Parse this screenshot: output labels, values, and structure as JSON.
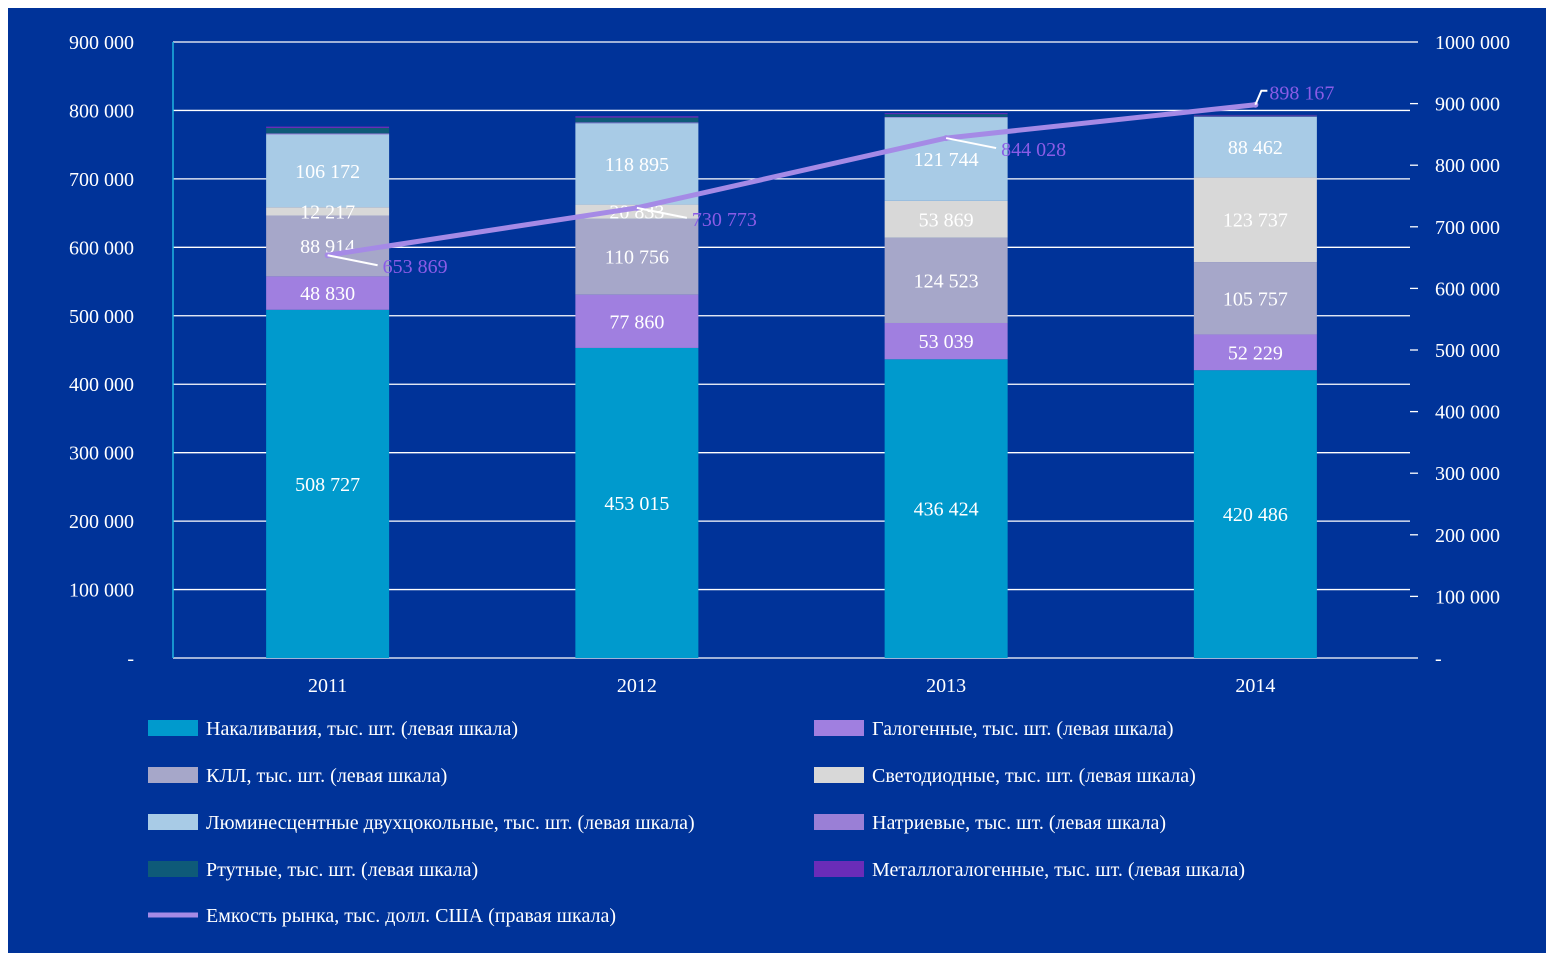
{
  "chart_data": {
    "type": "bar",
    "stacked": true,
    "categories": [
      "2011",
      "2012",
      "2013",
      "2014"
    ],
    "left_axis": {
      "ylim": [
        0,
        900000
      ],
      "ticks": [
        "-",
        "100 000",
        "200 000",
        "300 000",
        "400 000",
        "500 000",
        "600 000",
        "700 000",
        "800 000",
        "900 000"
      ]
    },
    "right_axis": {
      "ylim": [
        0,
        1000000
      ],
      "ticks": [
        "-",
        "100 000",
        "200 000",
        "300 000",
        "400 000",
        "500 000",
        "600 000",
        "700 000",
        "800 000",
        "900 000",
        "1000 000"
      ]
    },
    "grid": true,
    "legend_position": "bottom",
    "series": [
      {
        "name": "Накаливания, тыс. шт. (левая шкала)",
        "color": "#009ACD",
        "values": [
          508727,
          453015,
          436424,
          420486
        ],
        "labels": [
          "508 727",
          "453 015",
          "436 424",
          "420 486"
        ]
      },
      {
        "name": "Галогенные, тыс. шт. (левая шкала)",
        "color": "#A07FE0",
        "values": [
          48830,
          77860,
          53039,
          52229
        ],
        "labels": [
          "48 830",
          "77 860",
          "53 039",
          "52 229"
        ]
      },
      {
        "name": "КЛЛ, тыс. шт. (левая шкала)",
        "color": "#A6A7C9",
        "values": [
          88914,
          110756,
          124523,
          105757
        ],
        "labels": [
          "88 914",
          "110 756",
          "124 523",
          "105 757"
        ]
      },
      {
        "name": "Светодиодные, тыс. шт. (левая шкала)",
        "color": "#D8D8D8",
        "values": [
          12217,
          20833,
          53869,
          123737
        ],
        "labels": [
          "12 217",
          "20 833",
          "53 869",
          "123 737"
        ]
      },
      {
        "name": "Люминесцентные двухцокольные, тыс. шт. (левая шкала)",
        "color": "#A8CBE6",
        "values": [
          106172,
          118895,
          121744,
          88462
        ],
        "labels": [
          "106 172",
          "118 895",
          "121 744",
          "88 462"
        ]
      },
      {
        "name": "Натриевые, тыс. шт. (левая шкала)",
        "color": "#9A7FD6",
        "values": [
          1500,
          1200,
          1000,
          800
        ],
        "labels": [
          "",
          "",
          "",
          ""
        ]
      },
      {
        "name": "Ртутные, тыс. шт. (левая шкала)",
        "color": "#0E5A78",
        "values": [
          8000,
          7000,
          4000,
          1000
        ],
        "labels": [
          "",
          "",
          "",
          ""
        ]
      },
      {
        "name": "Металлогалогенные, тыс. шт. (левая шкала)",
        "color": "#6A2CB8",
        "values": [
          2000,
          2000,
          1500,
          1000
        ],
        "labels": [
          "",
          "",
          "",
          ""
        ]
      }
    ],
    "line": {
      "name": "Емкость рынка, тыс. долл. США (правая шкала)",
      "color": "#A58AE6",
      "axis": "right",
      "values": [
        653869,
        730773,
        844028,
        898167
      ],
      "labels": [
        "653 869",
        "730 773",
        "844 028",
        "898 167"
      ]
    }
  }
}
